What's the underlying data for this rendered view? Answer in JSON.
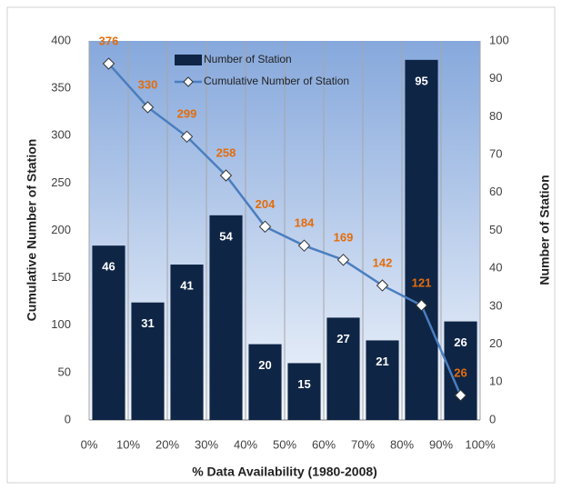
{
  "chart_data": {
    "type": "combo",
    "x": [
      5,
      15,
      25,
      35,
      45,
      55,
      65,
      75,
      85,
      95
    ],
    "xlim": [
      0,
      100
    ],
    "xticks": [
      {
        "value": 0,
        "label": "0%"
      },
      {
        "value": 10,
        "label": "10%"
      },
      {
        "value": 20,
        "label": "20%"
      },
      {
        "value": 30,
        "label": "30%"
      },
      {
        "value": 40,
        "label": "40%"
      },
      {
        "value": 50,
        "label": "50%"
      },
      {
        "value": 60,
        "label": "60%"
      },
      {
        "value": 70,
        "label": "70%"
      },
      {
        "value": 80,
        "label": "80%"
      },
      {
        "value": 90,
        "label": "90%"
      },
      {
        "value": 100,
        "label": "100%"
      }
    ],
    "ylim": [
      0,
      400
    ],
    "yticks": [
      0,
      50,
      100,
      150,
      200,
      250,
      300,
      350,
      400
    ],
    "y2lim": [
      0,
      100
    ],
    "y2ticks": [
      0,
      10,
      20,
      30,
      40,
      50,
      60,
      70,
      80,
      90,
      100
    ],
    "xlabel": "% Data Availability (1980-2008)",
    "ylabel": "Cumulative Number of Station",
    "y2label": "Number of Station",
    "grid": "x",
    "legend": "upper center",
    "series": [
      {
        "name": "Number of Station",
        "type": "bar",
        "axis": "y2",
        "color": "#0f2545",
        "label_color": "#ffffff",
        "values": [
          46,
          31,
          41,
          54,
          20,
          15,
          27,
          21,
          95,
          26
        ]
      },
      {
        "name": "Cumulative Number of Station",
        "type": "line",
        "axis": "y",
        "color": "#4a7ebf",
        "label_color": "#e46c0a",
        "values": [
          376,
          330,
          299,
          258,
          204,
          184,
          169,
          142,
          121,
          26
        ]
      }
    ]
  }
}
